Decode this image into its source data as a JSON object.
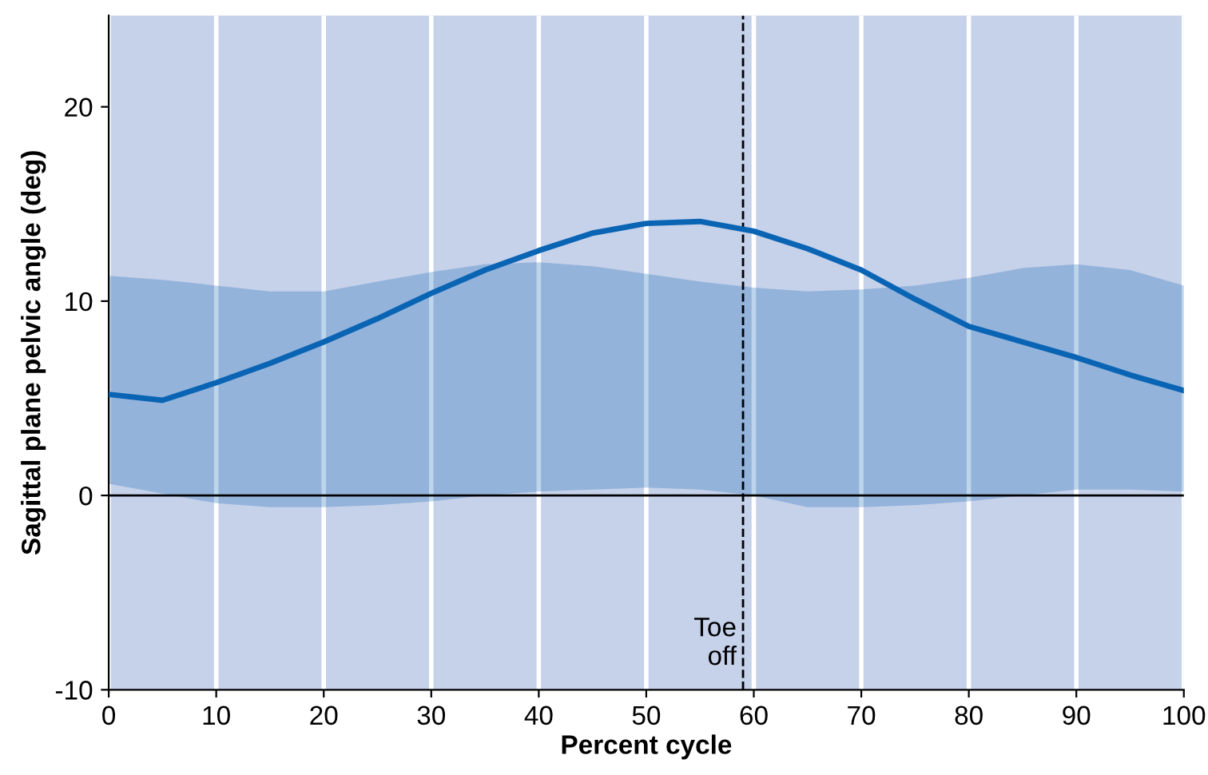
{
  "chart_data": {
    "type": "line",
    "xlabel": "Percent cycle",
    "ylabel": "Sagittal plane pelvic angle (deg)",
    "x": [
      0,
      5,
      10,
      15,
      20,
      25,
      30,
      35,
      40,
      45,
      50,
      55,
      60,
      65,
      70,
      75,
      80,
      85,
      90,
      95,
      100
    ],
    "series": [
      {
        "color": "#0a64b4",
        "values": [
          5.2,
          4.9,
          5.8,
          6.8,
          7.9,
          9.1,
          10.4,
          11.6,
          12.6,
          13.5,
          14.0,
          14.1,
          13.6,
          12.7,
          11.6,
          10.1,
          8.7,
          7.9,
          7.1,
          6.2,
          5.4
        ],
        "lower": [
          0.6,
          0.1,
          -0.4,
          -0.6,
          -0.6,
          -0.5,
          -0.3,
          0,
          0.2,
          0.3,
          0.4,
          0.3,
          0,
          -0.6,
          -0.6,
          -0.5,
          -0.3,
          0,
          0.3,
          0.3,
          0.2
        ],
        "upper": [
          11.3,
          11.1,
          10.8,
          10.5,
          10.5,
          11.0,
          11.5,
          11.9,
          12.0,
          11.8,
          11.4,
          11.0,
          10.7,
          10.5,
          10.6,
          10.8,
          11.2,
          11.7,
          11.9,
          11.6,
          10.8
        ]
      }
    ],
    "xlim": [
      0,
      100
    ],
    "xticks": [
      0,
      10,
      20,
      30,
      40,
      50,
      60,
      70,
      80,
      90,
      100
    ],
    "ylim": [
      -10,
      24.7
    ],
    "yticks": [
      -10,
      0,
      10,
      20
    ],
    "grid": "x",
    "marker": "none",
    "line_style": "solid",
    "ref_lines": [
      {
        "axis": "y",
        "value": 0,
        "color": "#000000",
        "line_style": "solid"
      },
      {
        "axis": "x",
        "value": 59,
        "label": "Toe\noff",
        "color": "#000000",
        "line_style": "dashed"
      }
    ]
  }
}
